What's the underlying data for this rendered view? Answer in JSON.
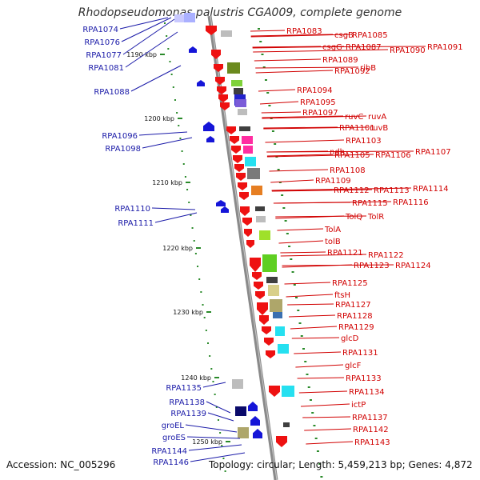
{
  "title": "Rhodopseudomonas palustris CGA009, complete genome",
  "footer": {
    "accession": "Accession: NC_005296",
    "topology": "Topology: circular; Length: 5,459,213 bp; Genes: 4,872"
  },
  "ticks": [
    "1190 kbp",
    "1200 kbp",
    "1210 kbp",
    "1220 kbp",
    "1230 kbp",
    "1240 kbp",
    "1250 kbp"
  ],
  "left_labels": [
    "RPA1074",
    "RPA1076",
    "RPA1077",
    "RPA1081",
    "RPA1088",
    "RPA1096",
    "RPA1098",
    "RPA1110",
    "RPA1111",
    "RPA1135",
    "RPA1138",
    "RPA1139",
    "groEL",
    "groES",
    "RPA1144",
    "RPA1146"
  ],
  "right_labels": [
    "RPA1083",
    "csgB",
    "RPA1085",
    "csgG",
    "RPA1087",
    "RPA1090",
    "RPA1091",
    "RPA1089",
    "RPA1092",
    "ribB",
    "RPA1094",
    "RPA1095",
    "RPA1097",
    "ruvC",
    "ruvA",
    "RPA1101",
    "ruvB",
    "RPA1103",
    "ndh",
    "RPA1105",
    "RPA1106",
    "RPA1107",
    "RPA1108",
    "RPA1109",
    "RPA1112",
    "RPA1113",
    "RPA1114",
    "RPA1115",
    "RPA1116",
    "TolQ",
    "TolR",
    "TolA",
    "tolB",
    "RPA1121",
    "RPA1122",
    "RPA1123",
    "RPA1124",
    "RPA1125",
    "ftsH",
    "RPA1127",
    "RPA1128",
    "RPA1129",
    "glcD",
    "RPA1131",
    "glcF",
    "RPA1133",
    "RPA1134",
    "ictP",
    "RPA1137",
    "RPA1142",
    "RPA1143"
  ]
}
